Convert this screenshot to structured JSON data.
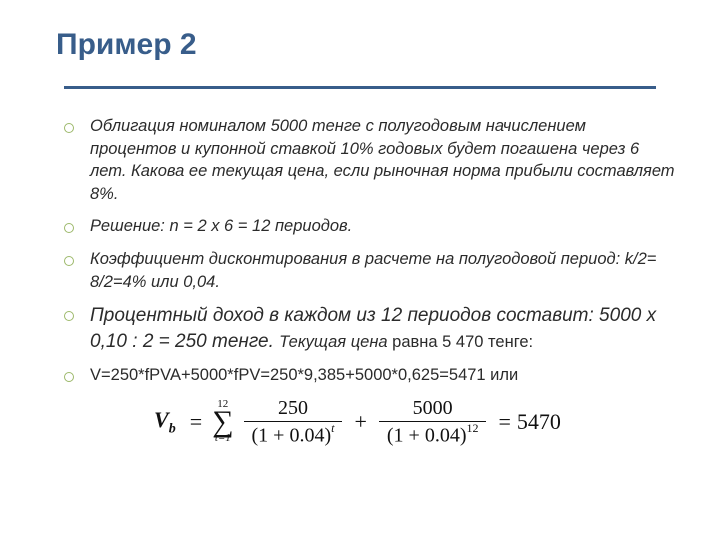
{
  "title": "Пример 2",
  "bullets": {
    "b1": "Облигация номиналом 5000 тенге с полугодовым  начислением процентов и купонной ставкой 10% годовых будет погашена через 6 лет. Какова ее текущая цена, если рыночная норма прибыли составляет 8%.",
    "b2": " Решение: n = 2 х 6 = 12 периодов.",
    "b3": " Коэффициент дисконтирования в расчете на полугодовой период: k/2= 8/2=4% или 0,04.",
    "b4a": " Процентный доход в каждом из 12 периодов составит: 5000 х 0,10 : 2 = 250  тенге. ",
    "b4b": "Текущая цена",
    "b4c": " равна 5 470 тенге:",
    "b5": "V=250*fPVA+5000*fPV=250*9,385+5000*0,625=5471 или"
  },
  "formula": {
    "lhs": "V",
    "sub": "b",
    "sum_top": "12",
    "sum_bot": "t=1",
    "frac1_num": "250",
    "frac1_den_base": "(1 + 0.04)",
    "frac1_den_exp": "t",
    "frac2_num": "5000",
    "frac2_den_base": "(1 + 0.04)",
    "frac2_den_exp": "12",
    "rhs": "5470"
  },
  "colors": {
    "accent": "#385D8A",
    "bullet": "#9DB96B",
    "text": "#2b2b2b",
    "background": "#ffffff"
  },
  "typography": {
    "title_fontsize": 30,
    "body_fontsize": 16.5,
    "big_fontsize": 19,
    "formula_fontsize": 22
  }
}
